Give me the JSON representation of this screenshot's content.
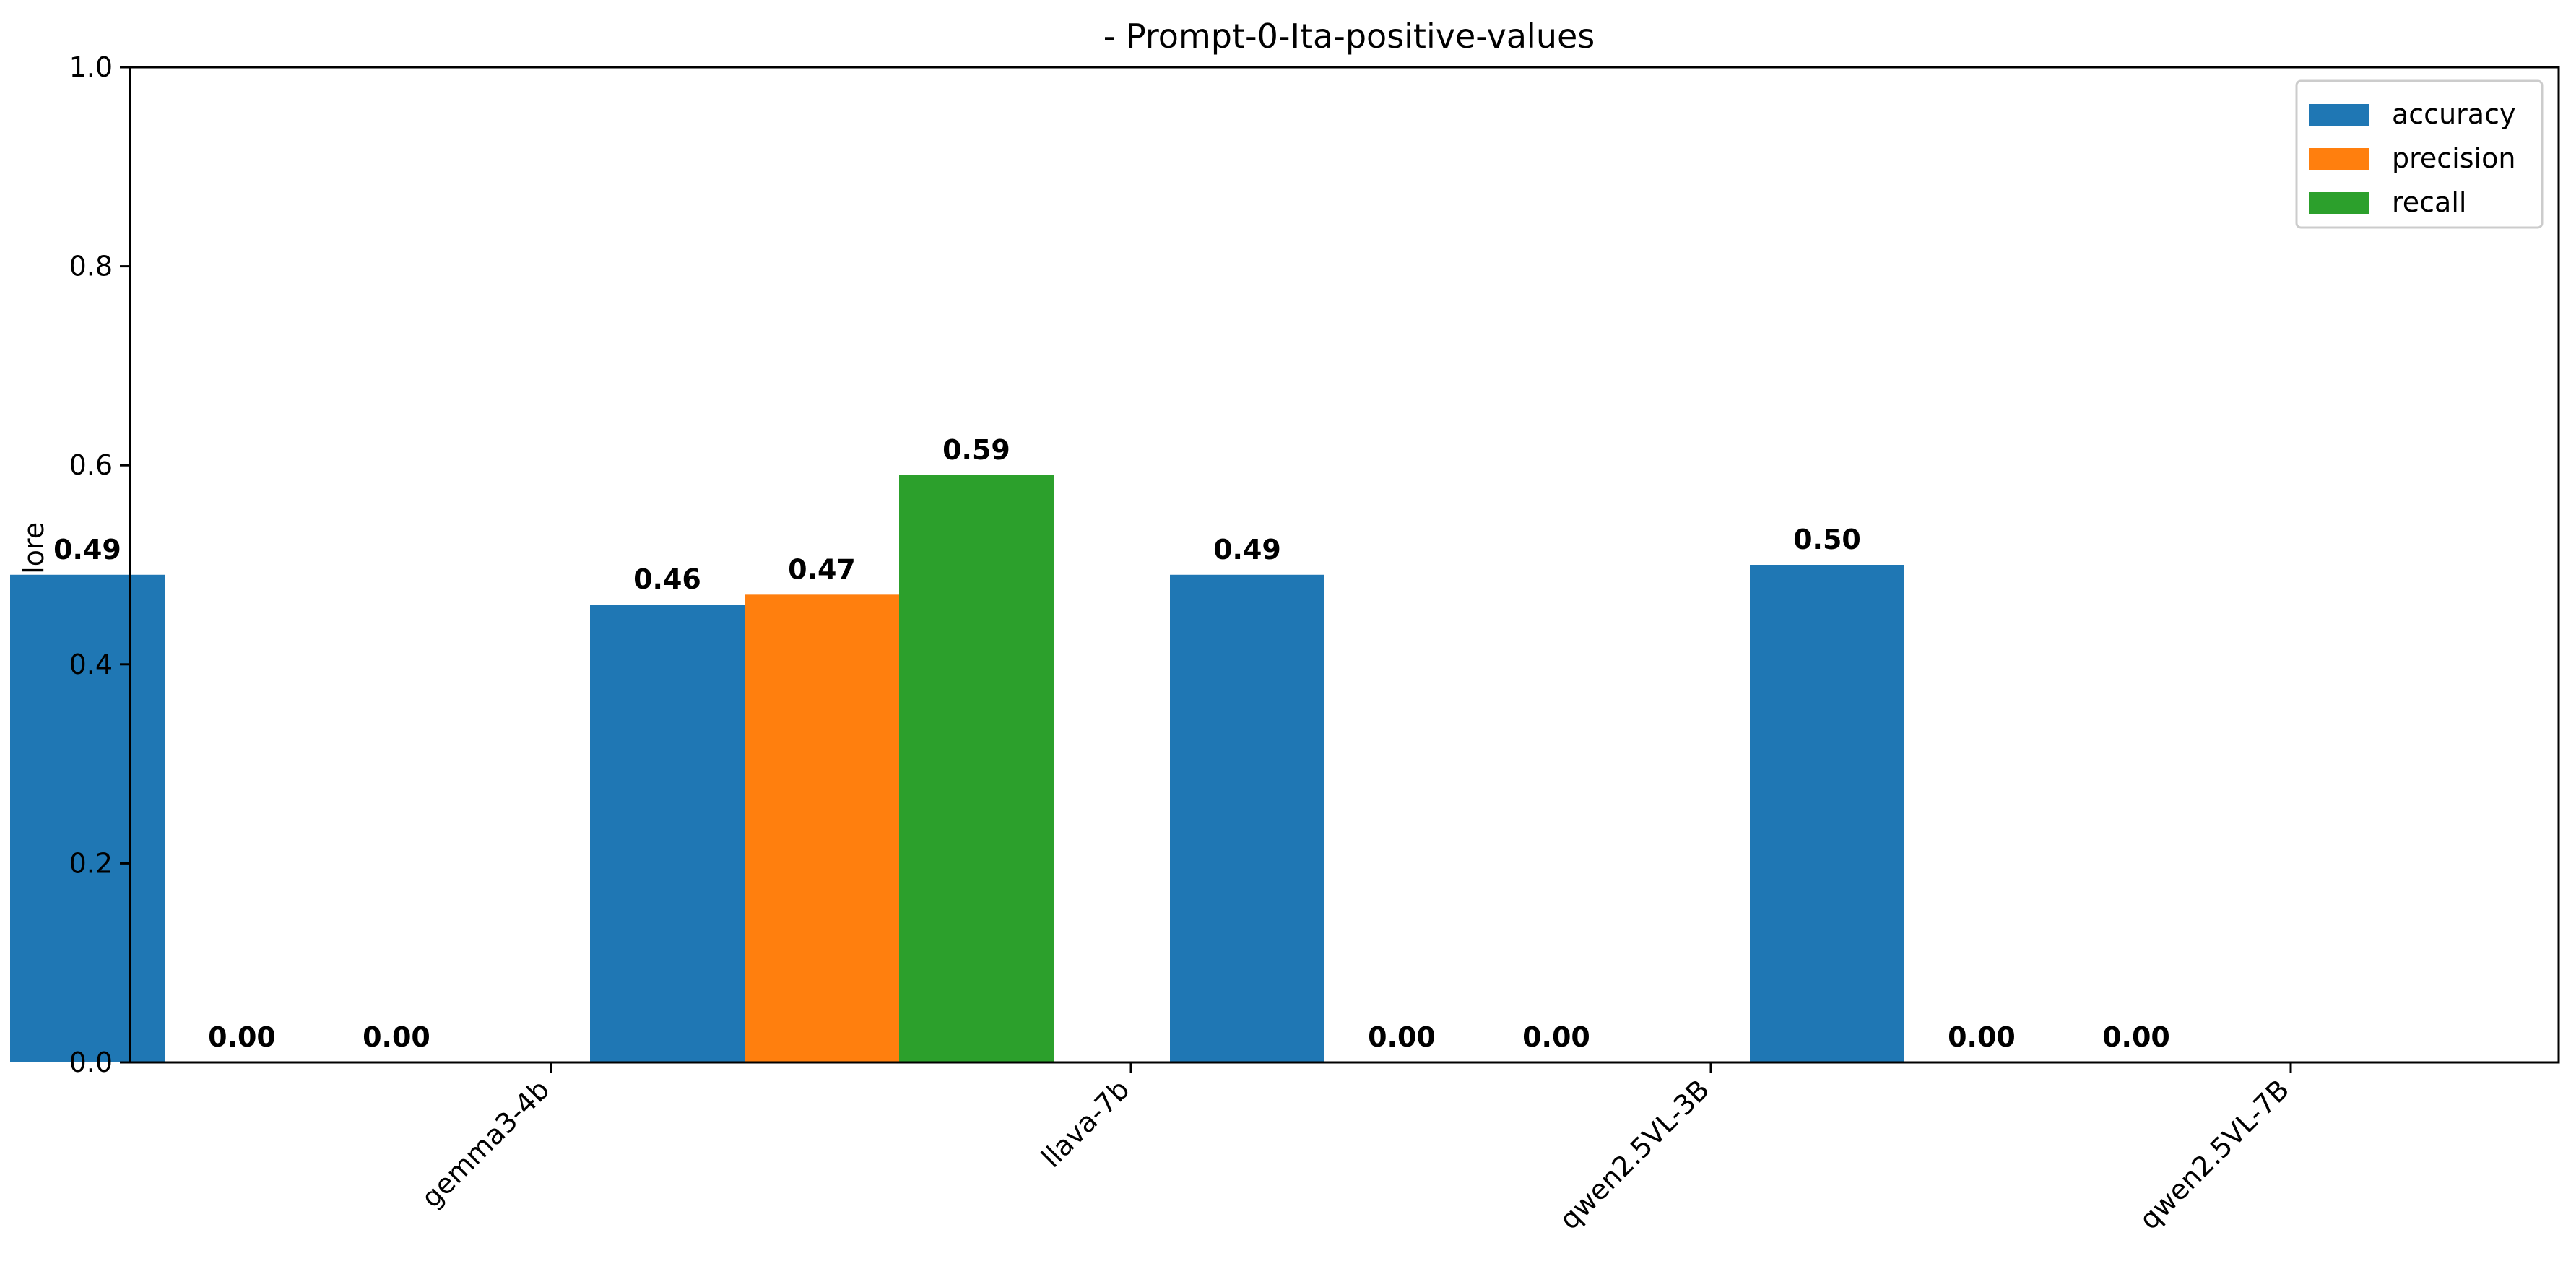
{
  "chart_data": {
    "type": "bar",
    "title": "- Prompt-0-Ita-positive-values",
    "xlabel": "",
    "ylabel": "Valore",
    "ylim": [
      0,
      1.0
    ],
    "yticks": [
      "0.0",
      "0.2",
      "0.4",
      "0.6",
      "0.8",
      "1.0"
    ],
    "categories": [
      "gemma3-4b",
      "llava-7b",
      "qwen2.5VL-3B",
      "qwen2.5VL-7B"
    ],
    "series": [
      {
        "name": "accuracy",
        "color": "#1f77b4",
        "values": [
          0.49,
          0.46,
          0.49,
          0.5
        ],
        "labels": [
          "0.49",
          "0.46",
          "0.49",
          "0.50"
        ]
      },
      {
        "name": "precision",
        "color": "#ff7f0e",
        "values": [
          0.0,
          0.47,
          0.0,
          0.0
        ],
        "labels": [
          "0.00",
          "0.47",
          "0.00",
          "0.00"
        ]
      },
      {
        "name": "recall",
        "color": "#2ca02c",
        "values": [
          0.0,
          0.59,
          0.0,
          0.0
        ],
        "labels": [
          "0.00",
          "0.59",
          "0.00",
          "0.00"
        ]
      }
    ],
    "grid": false,
    "legend_position": "top-right"
  }
}
